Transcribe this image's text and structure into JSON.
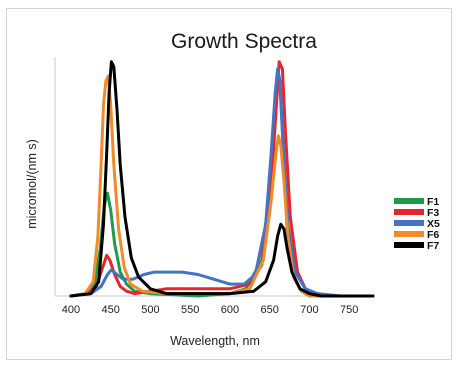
{
  "chart_data": {
    "type": "line",
    "title": "Growth Spectra",
    "xlabel": "Wavelength, nm",
    "ylabel": "micromol/(nm s)",
    "xlim": [
      380,
      780
    ],
    "ylim": [
      0,
      1
    ],
    "x_ticks": [
      400,
      450,
      500,
      550,
      600,
      650,
      700,
      750
    ],
    "y_ticks_shown": false,
    "grid": false,
    "legend_position": "right",
    "series": [
      {
        "name": "F1",
        "color": "#1f9a4a",
        "points": [
          [
            400,
            0
          ],
          [
            420,
            0.01
          ],
          [
            430,
            0.05
          ],
          [
            437,
            0.2
          ],
          [
            442,
            0.38
          ],
          [
            446,
            0.43
          ],
          [
            450,
            0.36
          ],
          [
            455,
            0.22
          ],
          [
            462,
            0.1
          ],
          [
            470,
            0.05
          ],
          [
            480,
            0.02
          ],
          [
            500,
            0.01
          ],
          [
            560,
            0
          ],
          [
            600,
            0.01
          ],
          [
            620,
            0.03
          ],
          [
            640,
            0.15
          ],
          [
            650,
            0.45
          ],
          [
            656,
            0.75
          ],
          [
            660,
            0.9
          ],
          [
            663,
            0.88
          ],
          [
            667,
            0.62
          ],
          [
            672,
            0.28
          ],
          [
            680,
            0.08
          ],
          [
            690,
            0.02
          ],
          [
            700,
            0
          ],
          [
            780,
            0
          ]
        ]
      },
      {
        "name": "F3",
        "color": "#e8262a",
        "points": [
          [
            400,
            0
          ],
          [
            420,
            0.01
          ],
          [
            432,
            0.04
          ],
          [
            440,
            0.12
          ],
          [
            445,
            0.17
          ],
          [
            449,
            0.15
          ],
          [
            455,
            0.09
          ],
          [
            462,
            0.04
          ],
          [
            470,
            0.02
          ],
          [
            480,
            0.01
          ],
          [
            500,
            0.02
          ],
          [
            520,
            0.03
          ],
          [
            550,
            0.03
          ],
          [
            600,
            0.03
          ],
          [
            625,
            0.05
          ],
          [
            640,
            0.13
          ],
          [
            650,
            0.35
          ],
          [
            657,
            0.72
          ],
          [
            662,
            0.98
          ],
          [
            666,
            0.95
          ],
          [
            670,
            0.68
          ],
          [
            676,
            0.33
          ],
          [
            685,
            0.1
          ],
          [
            695,
            0.03
          ],
          [
            710,
            0.01
          ],
          [
            730,
            0
          ],
          [
            780,
            0
          ]
        ]
      },
      {
        "name": "X5",
        "color": "#4472c4",
        "points": [
          [
            400,
            0
          ],
          [
            425,
            0.01
          ],
          [
            438,
            0.04
          ],
          [
            446,
            0.09
          ],
          [
            451,
            0.11
          ],
          [
            458,
            0.09
          ],
          [
            466,
            0.07
          ],
          [
            478,
            0.07
          ],
          [
            492,
            0.09
          ],
          [
            505,
            0.1
          ],
          [
            520,
            0.1
          ],
          [
            540,
            0.1
          ],
          [
            560,
            0.09
          ],
          [
            580,
            0.07
          ],
          [
            600,
            0.05
          ],
          [
            618,
            0.05
          ],
          [
            632,
            0.09
          ],
          [
            645,
            0.3
          ],
          [
            652,
            0.6
          ],
          [
            657,
            0.85
          ],
          [
            660,
            0.95
          ],
          [
            663,
            0.9
          ],
          [
            667,
            0.62
          ],
          [
            673,
            0.3
          ],
          [
            682,
            0.1
          ],
          [
            695,
            0.03
          ],
          [
            710,
            0.01
          ],
          [
            740,
            0
          ],
          [
            780,
            0
          ]
        ]
      },
      {
        "name": "F6",
        "color": "#f08a2a",
        "points": [
          [
            400,
            0
          ],
          [
            418,
            0.01
          ],
          [
            428,
            0.06
          ],
          [
            434,
            0.25
          ],
          [
            438,
            0.55
          ],
          [
            441,
            0.8
          ],
          [
            444,
            0.9
          ],
          [
            447,
            0.92
          ],
          [
            450,
            0.8
          ],
          [
            454,
            0.55
          ],
          [
            460,
            0.28
          ],
          [
            467,
            0.12
          ],
          [
            475,
            0.05
          ],
          [
            490,
            0.02
          ],
          [
            520,
            0.01
          ],
          [
            600,
            0.01
          ],
          [
            625,
            0.03
          ],
          [
            642,
            0.15
          ],
          [
            652,
            0.4
          ],
          [
            658,
            0.6
          ],
          [
            661,
            0.67
          ],
          [
            664,
            0.63
          ],
          [
            668,
            0.48
          ],
          [
            673,
            0.25
          ],
          [
            680,
            0.08
          ],
          [
            690,
            0.02
          ],
          [
            700,
            0
          ],
          [
            780,
            0
          ]
        ]
      },
      {
        "name": "F7",
        "color": "#000000",
        "points": [
          [
            400,
            0
          ],
          [
            425,
            0.01
          ],
          [
            435,
            0.06
          ],
          [
            441,
            0.3
          ],
          [
            445,
            0.6
          ],
          [
            448,
            0.85
          ],
          [
            451,
            0.98
          ],
          [
            454,
            0.96
          ],
          [
            458,
            0.78
          ],
          [
            462,
            0.55
          ],
          [
            468,
            0.33
          ],
          [
            476,
            0.16
          ],
          [
            485,
            0.08
          ],
          [
            500,
            0.03
          ],
          [
            520,
            0.01
          ],
          [
            600,
            0.01
          ],
          [
            630,
            0.02
          ],
          [
            645,
            0.06
          ],
          [
            655,
            0.15
          ],
          [
            660,
            0.25
          ],
          [
            664,
            0.3
          ],
          [
            668,
            0.28
          ],
          [
            672,
            0.2
          ],
          [
            678,
            0.1
          ],
          [
            688,
            0.03
          ],
          [
            700,
            0.01
          ],
          [
            715,
            0
          ],
          [
            780,
            0
          ]
        ]
      }
    ]
  }
}
